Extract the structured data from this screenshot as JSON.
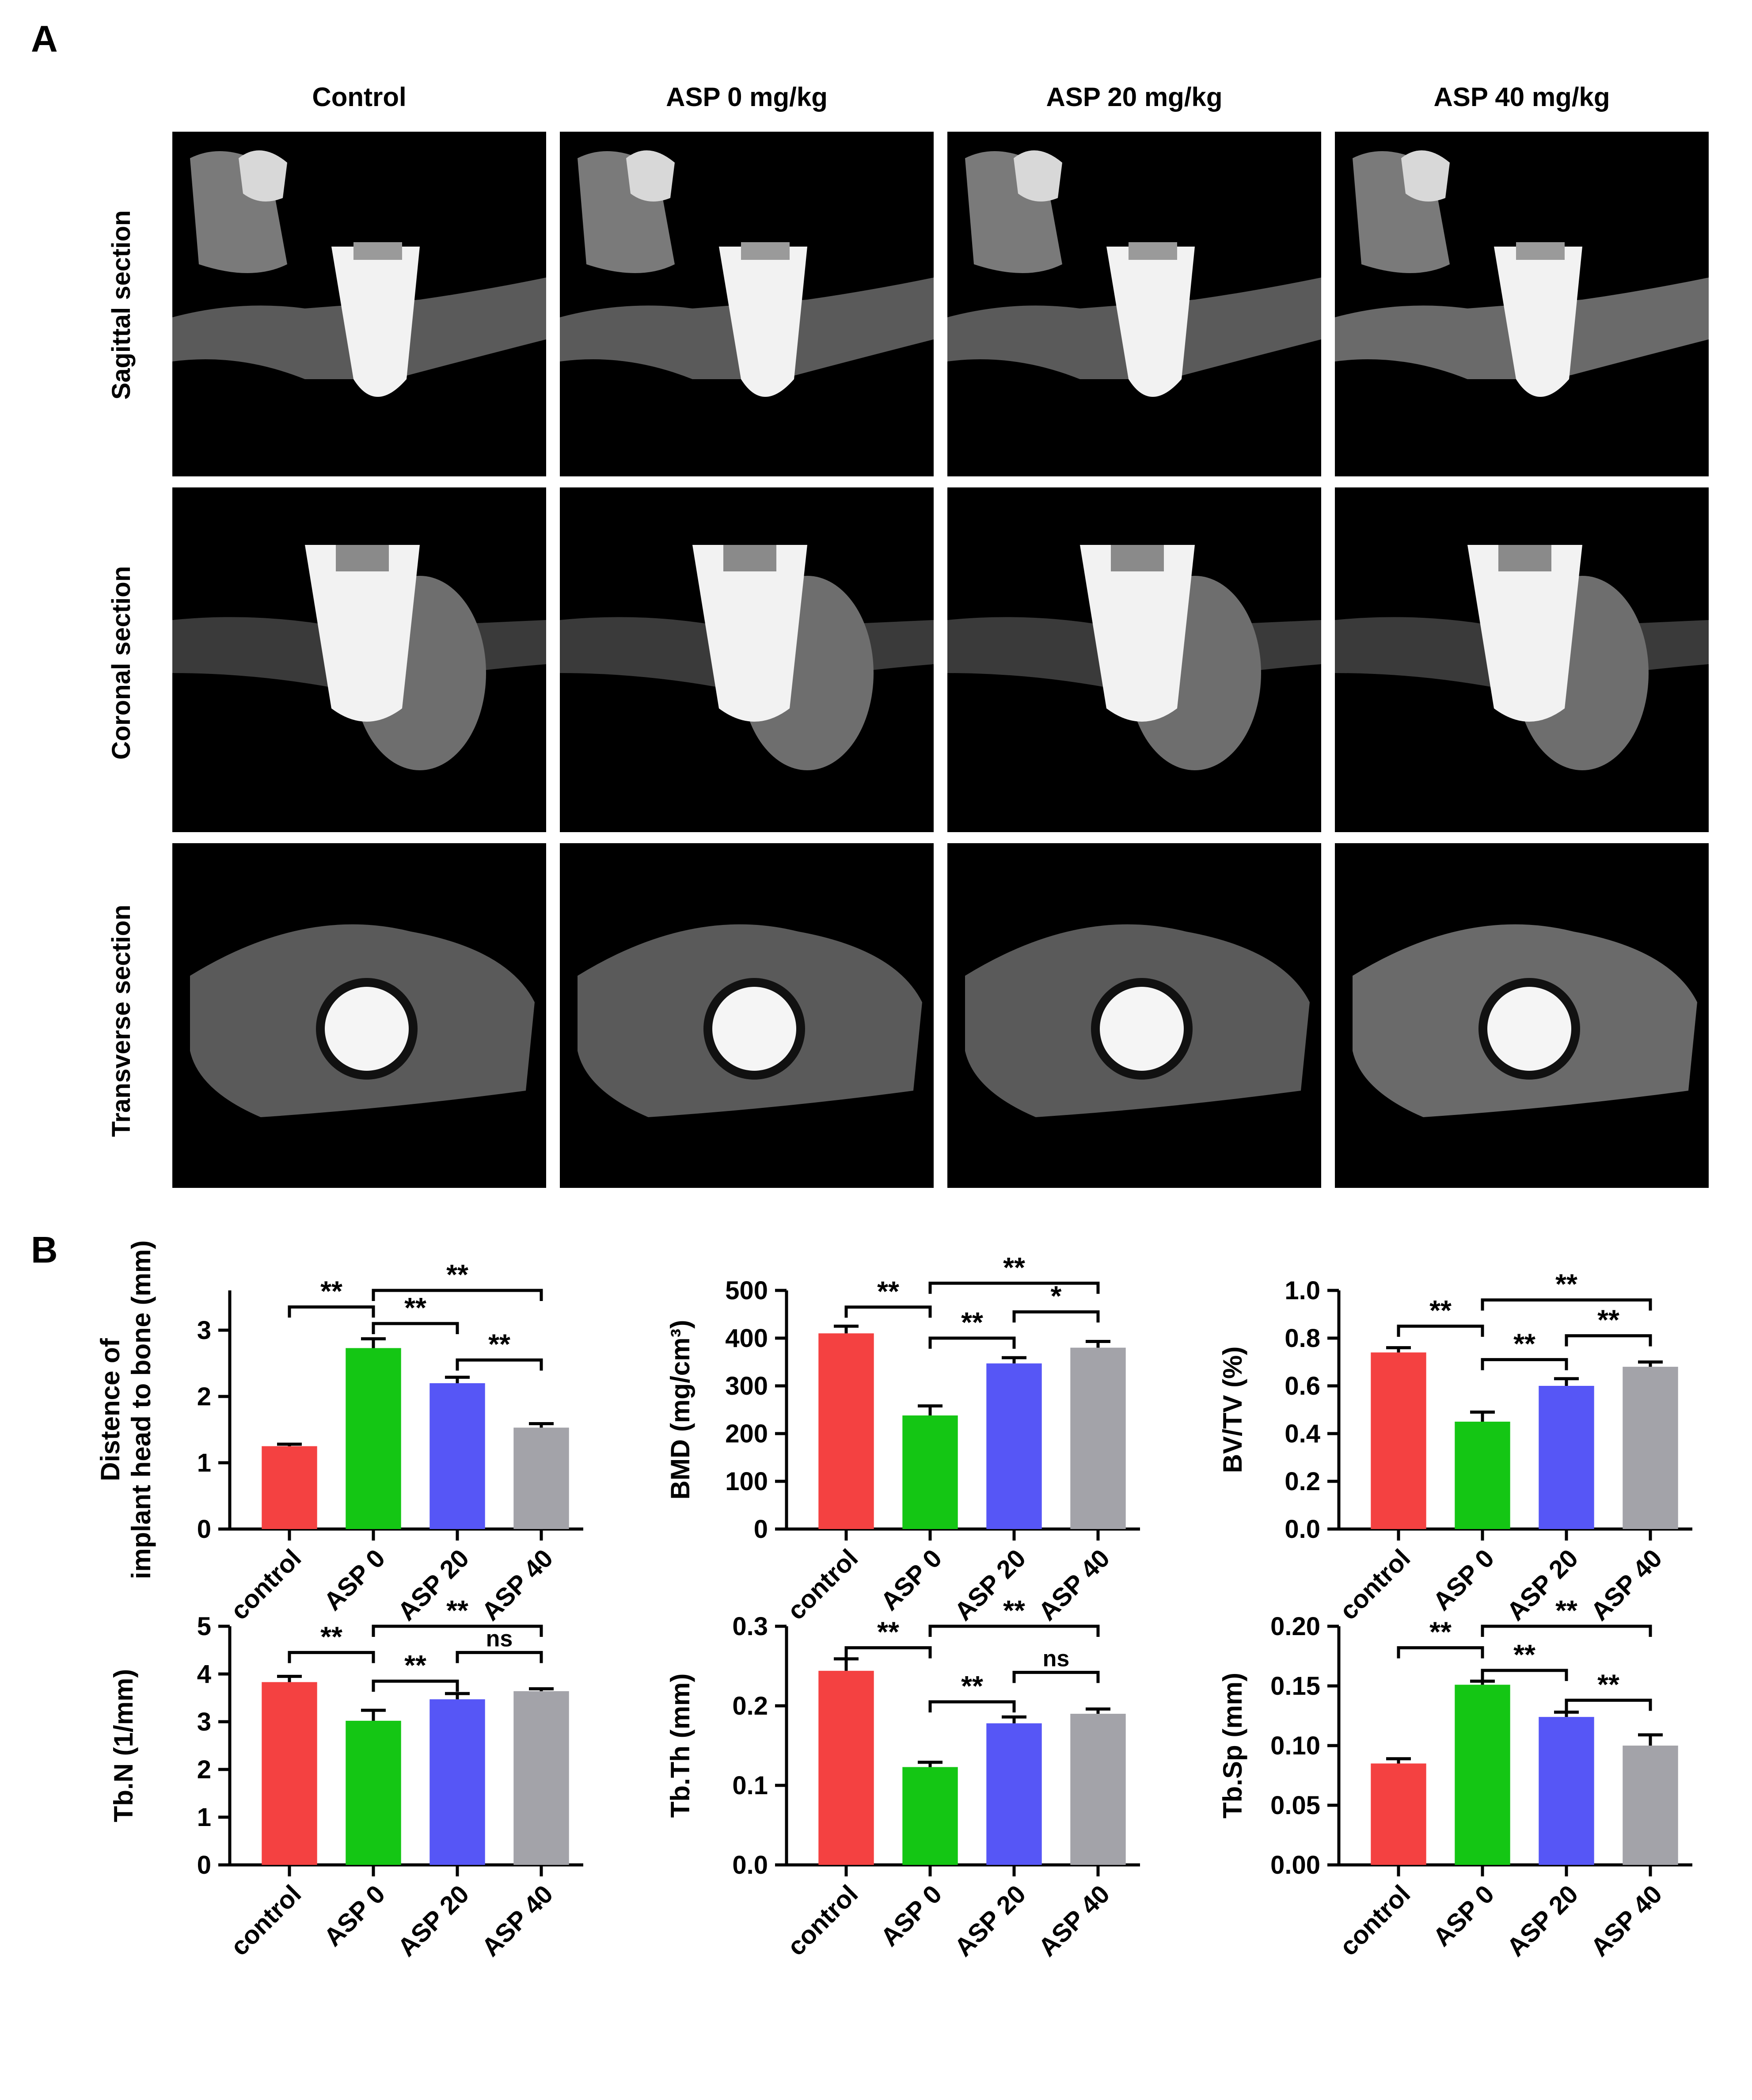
{
  "panels": {
    "a": {
      "letter": "A",
      "columns": [
        "Control",
        "ASP 0 mg/kg",
        "ASP 20 mg/kg",
        "ASP 40 mg/kg"
      ],
      "rows": [
        "Sagittal section",
        "Coronal section",
        "Transverse section"
      ]
    },
    "b": {
      "letter": "B"
    }
  },
  "colors": {
    "control": "#f44141",
    "asp0": "#14c614",
    "asp20": "#5656f6",
    "asp40": "#a3a3a9"
  },
  "chart_data": [
    {
      "type": "bar",
      "categories": [
        "control",
        "ASP 0",
        "ASP 20",
        "ASP 40"
      ],
      "values": [
        1.25,
        2.73,
        2.2,
        1.53
      ],
      "errors": [
        0.03,
        0.14,
        0.09,
        0.06
      ],
      "ylabel_lines": [
        "Distence of",
        "implant head to bone (mm)"
      ],
      "ylim": [
        0,
        3.6
      ],
      "yticks": [
        0,
        1,
        2,
        3
      ],
      "yticklabels": [
        "0",
        "1",
        "2",
        "3"
      ],
      "significance": [
        {
          "from": 0,
          "to": 1,
          "label": "**",
          "level": 3.35
        },
        {
          "from": 1,
          "to": 3,
          "label": "**",
          "level": 3.6
        },
        {
          "from": 1,
          "to": 2,
          "label": "**",
          "level": 3.1
        },
        {
          "from": 2,
          "to": 3,
          "label": "**",
          "level": 2.55
        }
      ]
    },
    {
      "type": "bar",
      "categories": [
        "control",
        "ASP 0",
        "ASP 20",
        "ASP 40"
      ],
      "values": [
        410,
        238,
        347,
        380
      ],
      "errors": [
        15,
        20,
        12,
        13
      ],
      "ylabel_lines": [
        "BMD (mg/cm³)"
      ],
      "ylim": [
        0,
        500
      ],
      "yticks": [
        0,
        100,
        200,
        300,
        400,
        500
      ],
      "yticklabels": [
        "0",
        "100",
        "200",
        "300",
        "400",
        "500"
      ],
      "significance": [
        {
          "from": 0,
          "to": 1,
          "label": "**",
          "level": 465
        },
        {
          "from": 1,
          "to": 3,
          "label": "**",
          "level": 515
        },
        {
          "from": 1,
          "to": 2,
          "label": "**",
          "level": 400
        },
        {
          "from": 2,
          "to": 3,
          "label": "*",
          "level": 455
        }
      ]
    },
    {
      "type": "bar",
      "categories": [
        "control",
        "ASP 0",
        "ASP 20",
        "ASP 40"
      ],
      "values": [
        0.74,
        0.45,
        0.6,
        0.68
      ],
      "errors": [
        0.02,
        0.04,
        0.03,
        0.02
      ],
      "ylabel_lines": [
        "BV/TV (%)"
      ],
      "ylim": [
        0,
        1.0
      ],
      "yticks": [
        0,
        0.2,
        0.4,
        0.6,
        0.8,
        1.0
      ],
      "yticklabels": [
        "0.0",
        "0.2",
        "0.4",
        "0.6",
        "0.8",
        "1.0"
      ],
      "significance": [
        {
          "from": 0,
          "to": 1,
          "label": "**",
          "level": 0.85
        },
        {
          "from": 1,
          "to": 3,
          "label": "**",
          "level": 0.96
        },
        {
          "from": 1,
          "to": 2,
          "label": "**",
          "level": 0.71
        },
        {
          "from": 2,
          "to": 3,
          "label": "**",
          "level": 0.81
        }
      ]
    },
    {
      "type": "bar",
      "categories": [
        "control",
        "ASP 0",
        "ASP 20",
        "ASP 40"
      ],
      "values": [
        3.83,
        3.02,
        3.47,
        3.64
      ],
      "errors": [
        0.12,
        0.22,
        0.12,
        0.05
      ],
      "ylabel_lines": [
        "Tb.N (1/mm)"
      ],
      "ylim": [
        0,
        5
      ],
      "yticks": [
        0,
        1,
        2,
        3,
        4,
        5
      ],
      "yticklabels": [
        "0",
        "1",
        "2",
        "3",
        "4",
        "5"
      ],
      "significance": [
        {
          "from": 0,
          "to": 1,
          "label": "**",
          "level": 4.45
        },
        {
          "from": 1,
          "to": 3,
          "label": "**",
          "level": 5.0
        },
        {
          "from": 1,
          "to": 2,
          "label": "**",
          "level": 3.85
        },
        {
          "from": 2,
          "to": 3,
          "label": "ns",
          "level": 4.45
        }
      ]
    },
    {
      "type": "bar",
      "categories": [
        "control",
        "ASP 0",
        "ASP 20",
        "ASP 40"
      ],
      "values": [
        0.244,
        0.123,
        0.178,
        0.19
      ],
      "errors": [
        0.015,
        0.006,
        0.008,
        0.006
      ],
      "ylabel_lines": [
        "Tb.Th (mm)"
      ],
      "ylim": [
        0,
        0.3
      ],
      "yticks": [
        0,
        0.1,
        0.2,
        0.3
      ],
      "yticklabels": [
        "0.0",
        "0.1",
        "0.2",
        "0.3"
      ],
      "significance": [
        {
          "from": 0,
          "to": 1,
          "label": "**",
          "level": 0.273
        },
        {
          "from": 1,
          "to": 3,
          "label": "**",
          "level": 0.3
        },
        {
          "from": 1,
          "to": 2,
          "label": "**",
          "level": 0.205
        },
        {
          "from": 2,
          "to": 3,
          "label": "ns",
          "level": 0.242
        }
      ]
    },
    {
      "type": "bar",
      "categories": [
        "control",
        "ASP 0",
        "ASP 20",
        "ASP 40"
      ],
      "values": [
        0.085,
        0.151,
        0.124,
        0.1
      ],
      "errors": [
        0.004,
        0.003,
        0.004,
        0.009
      ],
      "ylabel_lines": [
        "Tb.Sp (mm)"
      ],
      "ylim": [
        0,
        0.2
      ],
      "yticks": [
        0,
        0.05,
        0.1,
        0.15,
        0.2
      ],
      "yticklabels": [
        "0.00",
        "0.05",
        "0.10",
        "0.15",
        "0.20"
      ],
      "significance": [
        {
          "from": 0,
          "to": 1,
          "label": "**",
          "level": 0.182
        },
        {
          "from": 1,
          "to": 3,
          "label": "**",
          "level": 0.2
        },
        {
          "from": 1,
          "to": 2,
          "label": "**",
          "level": 0.163
        },
        {
          "from": 2,
          "to": 3,
          "label": "**",
          "level": 0.138
        }
      ]
    }
  ]
}
